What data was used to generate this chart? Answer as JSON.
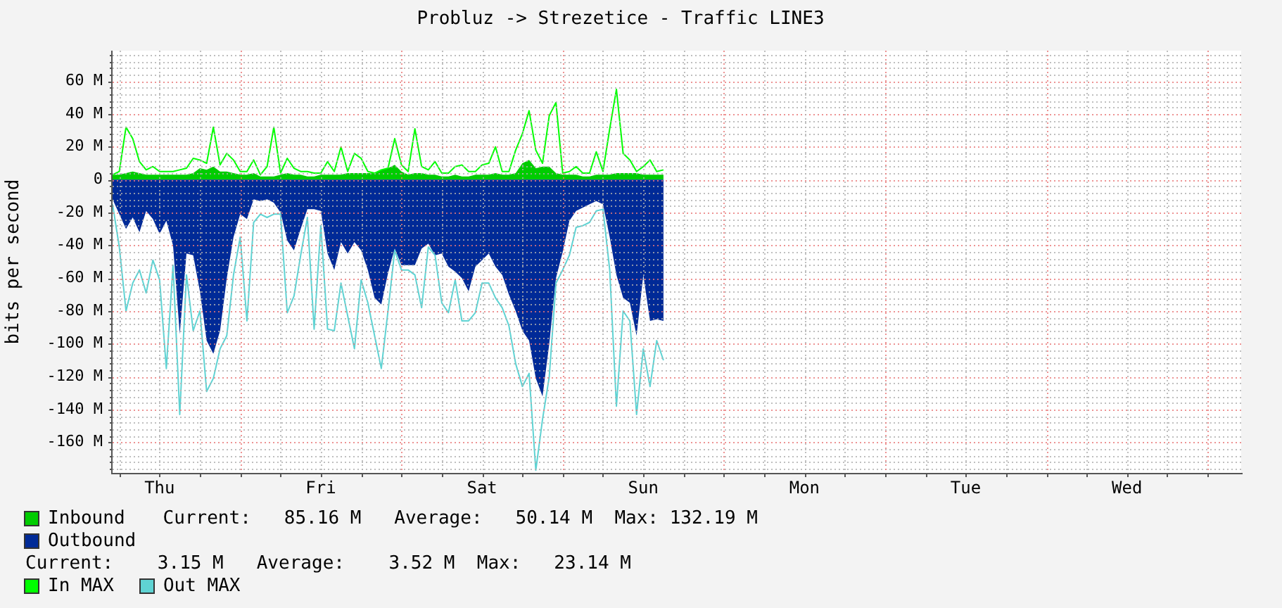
{
  "chart_data": {
    "type": "area",
    "title": "Probluz -> Strezetice - Traffic LINE3",
    "ylabel": "bits per second",
    "annotations": [
      "Current:   85.16 M   Average:   50.14 M  Max: 132.19 M",
      "Current:    3.15 M   Average:    3.52 M  Max:   23.14 M"
    ],
    "categories": [
      null,
      null,
      null,
      null,
      null,
      null,
      null,
      "Thu",
      null,
      null,
      null,
      null,
      null,
      null,
      null,
      null,
      null,
      null,
      null,
      null,
      null,
      null,
      null,
      null,
      null,
      null,
      null,
      null,
      null,
      null,
      null,
      "Fri",
      null,
      null,
      null,
      null,
      null,
      null,
      null,
      null,
      null,
      null,
      null,
      null,
      null,
      null,
      null,
      null,
      null,
      null,
      null,
      null,
      null,
      null,
      null,
      "Sat",
      null,
      null,
      null,
      null,
      null,
      null,
      null,
      null,
      null,
      null,
      null,
      null,
      null,
      null,
      null,
      null,
      null,
      null,
      null,
      null,
      null,
      null,
      null,
      "Sun",
      null,
      null,
      null,
      null,
      null,
      null,
      null,
      null,
      null,
      null,
      null,
      null,
      null,
      null,
      null,
      null,
      null,
      null,
      null,
      null,
      null,
      null,
      null,
      "Mon",
      null,
      null,
      null,
      null,
      null,
      null,
      null,
      null,
      null,
      null,
      null,
      null,
      null,
      null,
      null,
      null,
      null,
      null,
      null,
      null,
      null,
      null,
      null,
      "Tue",
      null,
      null,
      null,
      null,
      null,
      null,
      null,
      null,
      null,
      null,
      null,
      null,
      null,
      null,
      null,
      null,
      null,
      null,
      null,
      null,
      null,
      null,
      null,
      "Wed",
      null,
      null,
      null,
      null,
      null,
      null,
      null,
      null,
      null,
      null,
      null,
      null,
      null,
      null,
      null,
      null,
      null
    ],
    "ylim": [
      -178.6,
      78.6
    ],
    "yticks": [
      {
        "value": -176,
        "label": null
      },
      {
        "value": -172,
        "label": null
      },
      {
        "value": -168,
        "label": null
      },
      {
        "value": -164,
        "label": null
      },
      {
        "value": -160,
        "label": "-160 M"
      },
      {
        "value": -156,
        "label": null
      },
      {
        "value": -152,
        "label": null
      },
      {
        "value": -148,
        "label": null
      },
      {
        "value": -144,
        "label": null
      },
      {
        "value": -140,
        "label": "-140 M"
      },
      {
        "value": -136,
        "label": null
      },
      {
        "value": -132,
        "label": null
      },
      {
        "value": -128,
        "label": null
      },
      {
        "value": -124,
        "label": null
      },
      {
        "value": -120,
        "label": "-120 M"
      },
      {
        "value": -116,
        "label": null
      },
      {
        "value": -112,
        "label": null
      },
      {
        "value": -108,
        "label": null
      },
      {
        "value": -104,
        "label": null
      },
      {
        "value": -100,
        "label": "-100 M"
      },
      {
        "value": -96,
        "label": null
      },
      {
        "value": -92,
        "label": null
      },
      {
        "value": -88,
        "label": null
      },
      {
        "value": -84,
        "label": null
      },
      {
        "value": -80,
        "label": "-80 M"
      },
      {
        "value": -76,
        "label": null
      },
      {
        "value": -72,
        "label": null
      },
      {
        "value": -68,
        "label": null
      },
      {
        "value": -64,
        "label": null
      },
      {
        "value": -60,
        "label": "-60 M"
      },
      {
        "value": -56,
        "label": null
      },
      {
        "value": -52,
        "label": null
      },
      {
        "value": -48,
        "label": null
      },
      {
        "value": -44,
        "label": null
      },
      {
        "value": -40,
        "label": "-40 M"
      },
      {
        "value": -36,
        "label": null
      },
      {
        "value": -32,
        "label": null
      },
      {
        "value": -28,
        "label": null
      },
      {
        "value": -24,
        "label": null
      },
      {
        "value": -20,
        "label": "-20 M"
      },
      {
        "value": -16,
        "label": null
      },
      {
        "value": -12,
        "label": null
      },
      {
        "value": -8,
        "label": null
      },
      {
        "value": -4,
        "label": null
      },
      0,
      {
        "value": 4,
        "label": null
      },
      {
        "value": 8,
        "label": null
      },
      {
        "value": 12,
        "label": null
      },
      {
        "value": 16,
        "label": null
      },
      {
        "value": 20,
        "label": "20 M"
      },
      {
        "value": 24,
        "label": null
      },
      {
        "value": 28,
        "label": null
      },
      {
        "value": 32,
        "label": null
      },
      {
        "value": 36,
        "label": null
      },
      {
        "value": 40,
        "label": "40 M"
      },
      {
        "value": 44,
        "label": null
      },
      {
        "value": 48,
        "label": null
      },
      {
        "value": 52,
        "label": null
      },
      {
        "value": 56,
        "label": null
      },
      {
        "value": 60,
        "label": "60 M"
      },
      {
        "value": 64,
        "label": null
      },
      {
        "value": 68,
        "label": null
      },
      {
        "value": 72,
        "label": null
      },
      {
        "value": 76,
        "label": null
      }
    ],
    "grid": true,
    "legend": "bottom",
    "series": [
      {
        "name": "Inbound",
        "color": "#00cc00",
        "values": [
          3,
          3,
          4,
          5,
          4,
          3,
          3,
          3,
          3,
          3,
          3,
          3,
          4,
          7,
          6,
          8,
          5,
          5,
          4,
          3,
          3,
          4,
          2,
          2,
          2,
          3,
          4,
          3,
          3,
          2,
          2,
          3,
          3,
          3,
          3,
          4,
          4,
          4,
          4,
          4,
          6,
          7,
          9,
          5,
          3,
          4,
          4,
          3,
          3,
          2,
          2,
          3,
          2,
          2,
          3,
          3,
          3,
          4,
          3,
          3,
          4,
          10,
          12,
          7,
          8,
          8,
          4,
          3,
          3,
          3,
          2,
          2,
          3,
          3,
          3,
          4,
          4,
          4,
          4,
          3,
          3,
          3,
          3,
          null,
          null,
          null,
          null,
          null,
          null,
          null,
          null,
          null,
          null,
          null,
          null,
          null,
          null,
          null,
          null,
          null,
          null,
          null,
          null,
          null,
          null,
          null,
          null,
          null,
          null,
          null,
          null,
          null,
          null,
          null,
          null,
          null,
          null,
          null,
          null,
          null,
          null,
          null,
          null,
          null,
          null,
          null,
          null,
          null,
          null,
          null,
          null,
          null,
          null,
          null,
          null,
          null,
          null,
          null,
          null,
          null,
          null,
          null,
          null,
          null,
          null,
          null,
          null,
          null,
          null,
          null,
          null,
          null,
          null,
          null,
          null,
          null,
          null,
          null,
          null,
          null,
          null,
          null,
          null,
          null,
          null,
          null,
          null,
          null,
          null
        ]
      },
      {
        "name": "Outbound",
        "color": "#002a97",
        "values": [
          -12,
          -21,
          -30,
          -23,
          -32,
          -19,
          -24,
          -33,
          -25,
          -40,
          -94,
          -45,
          -46,
          -68,
          -98,
          -106,
          -92,
          -60,
          -35,
          -21,
          -24,
          -12,
          -13,
          -12,
          -14,
          -20,
          -37,
          -43,
          -30,
          -18,
          -18,
          -19,
          -45,
          -55,
          -38,
          -45,
          -38,
          -43,
          -55,
          -72,
          -76,
          -57,
          -42,
          -52,
          -52,
          -52,
          -42,
          -39,
          -46,
          -45,
          -53,
          -56,
          -60,
          -68,
          -53,
          -49,
          -45,
          -53,
          -58,
          -70,
          -80,
          -92,
          -98,
          -121,
          -132,
          -100,
          -60,
          -44,
          -25,
          -19,
          -17,
          -15,
          -13,
          -15,
          -35,
          -58,
          -72,
          -75,
          -95,
          -58,
          -86,
          -85,
          -86,
          null,
          null,
          null,
          null,
          null,
          null,
          null,
          null,
          null,
          null,
          null,
          null,
          null,
          null,
          null,
          null,
          null,
          null,
          null,
          null,
          null,
          null,
          null,
          null,
          null,
          null,
          null,
          null,
          null,
          null,
          null,
          null,
          null,
          null,
          null,
          null,
          null,
          null,
          null,
          null,
          null,
          null,
          null,
          null,
          null,
          null,
          null,
          null,
          null,
          null,
          null,
          null,
          null,
          null,
          null,
          null,
          null,
          null,
          null,
          null,
          null,
          null,
          null,
          null,
          null,
          null,
          null,
          null,
          null,
          null,
          null,
          null,
          null,
          null,
          null,
          null,
          null,
          null,
          null,
          null,
          null,
          null,
          null,
          null,
          null,
          null
        ]
      },
      {
        "name": "In MAX",
        "type": "line",
        "color": "#00ff00",
        "values": [
          3,
          5,
          32,
          25,
          11,
          6,
          8,
          5,
          5,
          5,
          6,
          7,
          13,
          12,
          10,
          32,
          9,
          16,
          12,
          5,
          5,
          12,
          3,
          8,
          32,
          4,
          13,
          7,
          5,
          5,
          4,
          4,
          11,
          5,
          20,
          5,
          16,
          13,
          5,
          4,
          6,
          7,
          25,
          9,
          5,
          31,
          8,
          6,
          11,
          4,
          4,
          8,
          9,
          5,
          5,
          9,
          10,
          20,
          5,
          5,
          18,
          28,
          42,
          18,
          10,
          39,
          47,
          4,
          5,
          8,
          4,
          4,
          17,
          5,
          31,
          55,
          16,
          12,
          5,
          8,
          12,
          5,
          6,
          null,
          null,
          null,
          null,
          null,
          null,
          null,
          null,
          null,
          null,
          null,
          null,
          null,
          null,
          null,
          null,
          null,
          null,
          null,
          null,
          null,
          null,
          null,
          null,
          null,
          null,
          null,
          null,
          null,
          null,
          null,
          null,
          null,
          null,
          null,
          null,
          null,
          null,
          null,
          null,
          null,
          null,
          null,
          null,
          null,
          null,
          null,
          null,
          null,
          null,
          null,
          null,
          null,
          null,
          null,
          null,
          null,
          null,
          null,
          null,
          null,
          null,
          null,
          null,
          null,
          null,
          null,
          null,
          null,
          null,
          null,
          null,
          null,
          null,
          null,
          null,
          null,
          null,
          null,
          null,
          null,
          null,
          null,
          null,
          null,
          null
        ]
      },
      {
        "name": "Out MAX",
        "type": "line",
        "color": "#5fd3d3",
        "values": [
          -15,
          -41,
          -80,
          -63,
          -55,
          -69,
          -49,
          -61,
          -115,
          -52,
          -143,
          -58,
          -92,
          -80,
          -129,
          -121,
          -103,
          -95,
          -58,
          -35,
          -86,
          -26,
          -21,
          -23,
          -21,
          -21,
          -81,
          -71,
          -46,
          -23,
          -91,
          -28,
          -91,
          -92,
          -63,
          -83,
          -103,
          -61,
          -75,
          -95,
          -115,
          -80,
          -43,
          -55,
          -55,
          -58,
          -78,
          -41,
          -46,
          -75,
          -81,
          -61,
          -86,
          -86,
          -81,
          -63,
          -63,
          -72,
          -78,
          -89,
          -112,
          -126,
          -118,
          -177,
          -146,
          -120,
          -63,
          -55,
          -46,
          -29,
          -28,
          -26,
          -19,
          -18,
          -55,
          -138,
          -80,
          -86,
          -143,
          -103,
          -126,
          -98,
          -110,
          null,
          null,
          null,
          null,
          null,
          null,
          null,
          null,
          null,
          null,
          null,
          null,
          null,
          null,
          null,
          null,
          null,
          null,
          null,
          null,
          null,
          null,
          null,
          null,
          null,
          null,
          null,
          null,
          null,
          null,
          null,
          null,
          null,
          null,
          null,
          null,
          null,
          null,
          null,
          null,
          null,
          null,
          null,
          null,
          null,
          null,
          null,
          null,
          null,
          null,
          null,
          null,
          null,
          null,
          null,
          null,
          null,
          null,
          null,
          null,
          null,
          null,
          null,
          null,
          null,
          null,
          null,
          null,
          null,
          null,
          null,
          null,
          null,
          null,
          null,
          null,
          null,
          null,
          null,
          null,
          null,
          null,
          null,
          null,
          null,
          null
        ]
      }
    ]
  }
}
